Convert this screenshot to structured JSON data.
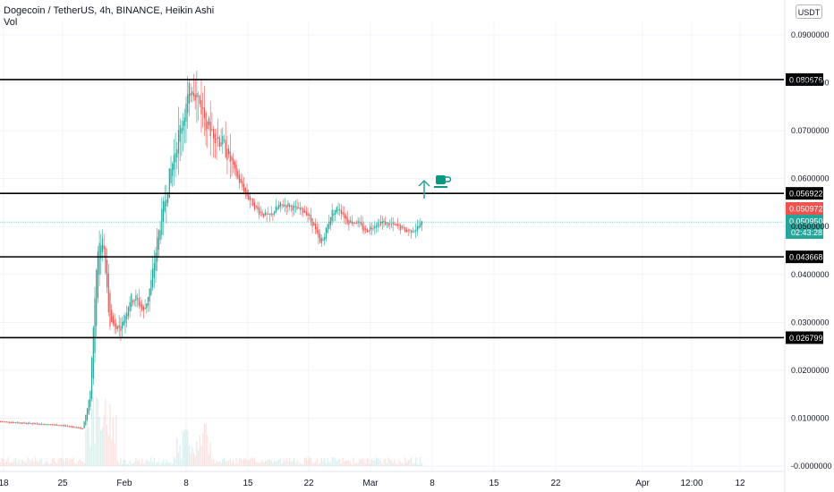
{
  "header": {
    "symbol_line": "Dogecoin / TetherUS, 4h, BINANCE, Heikin Ashi",
    "volume_label": "Vol",
    "currency": "USDT"
  },
  "colors": {
    "up": "#26a69a",
    "down": "#ef5350",
    "grid": "#f0f3fa",
    "level_line": "#000000",
    "axis_text": "#131722",
    "price_line": "#26a69a"
  },
  "icons": [
    "arrow-up-icon",
    "coffee-cup-icon"
  ],
  "chart_data": {
    "type": "candlestick",
    "title": "Dogecoin / TetherUS, 4h, BINANCE, Heikin Ashi",
    "ylim": [
      -0.002,
      0.092
    ],
    "y_ticks": [
      "0.0900000",
      "0.0800000",
      "0.0700000",
      "0.0600000",
      "0.0500000",
      "0.0400000",
      "0.0300000",
      "0.0200000",
      "0.0100000",
      "-0.0000000"
    ],
    "x_ticks": [
      "18",
      "25",
      "Feb",
      "8",
      "15",
      "22",
      "Mar",
      "8",
      "15",
      "22",
      "Apr",
      "12:00",
      "12"
    ],
    "horizontal_levels": [
      {
        "value": 0.0806767,
        "label": "0.0806767"
      },
      {
        "value": 0.0569224,
        "label": "0.0569224"
      },
      {
        "value": 0.0436683,
        "label": "0.0436683"
      },
      {
        "value": 0.0267993,
        "label": "0.0267993"
      }
    ],
    "current_price": {
      "value": 0.0509504,
      "label": "0.0509504",
      "countdown": "02:43:28"
    },
    "last_price": {
      "value": 0.0509723,
      "label": "0.0509723"
    },
    "price_path": [
      [
        "18",
        0.0093
      ],
      [
        "25",
        0.0085
      ],
      [
        "27",
        0.0078
      ],
      [
        "28",
        0.015
      ],
      [
        "29",
        0.045
      ],
      [
        "30",
        0.048
      ],
      [
        "31",
        0.03
      ],
      [
        "Feb",
        0.029
      ],
      [
        "2",
        0.035
      ],
      [
        "3",
        0.035
      ],
      [
        "4",
        0.032
      ],
      [
        "5",
        0.038
      ],
      [
        "6",
        0.048
      ],
      [
        "7",
        0.058
      ],
      [
        "8",
        0.07
      ],
      [
        "9",
        0.08
      ],
      [
        "10",
        0.076
      ],
      [
        "11",
        0.071
      ],
      [
        "12",
        0.069
      ],
      [
        "13",
        0.066
      ],
      [
        "14",
        0.06
      ],
      [
        "15",
        0.056
      ],
      [
        "16",
        0.053
      ],
      [
        "17",
        0.052
      ],
      [
        "18",
        0.0545
      ],
      [
        "19",
        0.0545
      ],
      [
        "20",
        0.0535
      ],
      [
        "21",
        0.053
      ],
      [
        "22",
        0.05
      ],
      [
        "23",
        0.046
      ],
      [
        "24",
        0.053
      ],
      [
        "25",
        0.054
      ],
      [
        "26",
        0.051
      ],
      [
        "27",
        0.051
      ],
      [
        "28",
        0.049
      ],
      [
        "Mar",
        0.05
      ],
      [
        "2",
        0.051
      ],
      [
        "3",
        0.0505
      ],
      [
        "4",
        0.05
      ],
      [
        "5",
        0.049
      ],
      [
        "6",
        0.0495
      ],
      [
        "7",
        0.0509
      ]
    ]
  }
}
